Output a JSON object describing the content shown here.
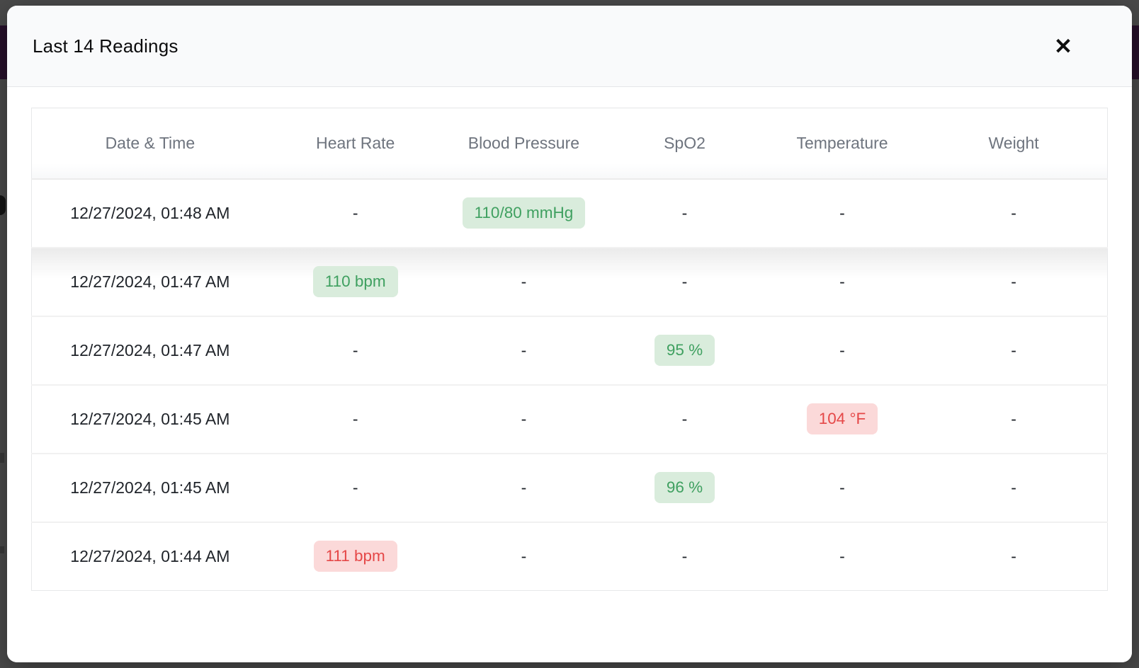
{
  "modal": {
    "title": "Last 14 Readings",
    "close_label": "✕"
  },
  "table": {
    "columns": [
      "Date & Time",
      "Heart Rate",
      "Blood Pressure",
      "SpO2",
      "Temperature",
      "Weight"
    ],
    "rows": [
      {
        "highlighted": false,
        "cells": [
          {
            "text": "12/27/2024, 01:48 AM"
          },
          {
            "text": "-"
          },
          {
            "text": "110/80 mmHg",
            "badge": "green"
          },
          {
            "text": "-"
          },
          {
            "text": "-"
          },
          {
            "text": "-"
          }
        ]
      },
      {
        "highlighted": true,
        "cells": [
          {
            "text": "12/27/2024, 01:47 AM"
          },
          {
            "text": "110 bpm",
            "badge": "green"
          },
          {
            "text": "-"
          },
          {
            "text": "-"
          },
          {
            "text": "-"
          },
          {
            "text": "-"
          }
        ]
      },
      {
        "highlighted": false,
        "cells": [
          {
            "text": "12/27/2024, 01:47 AM"
          },
          {
            "text": "-"
          },
          {
            "text": "-"
          },
          {
            "text": "95 %",
            "badge": "green"
          },
          {
            "text": "-"
          },
          {
            "text": "-"
          }
        ]
      },
      {
        "highlighted": false,
        "cells": [
          {
            "text": "12/27/2024, 01:45 AM"
          },
          {
            "text": "-"
          },
          {
            "text": "-"
          },
          {
            "text": "-"
          },
          {
            "text": "104 °F",
            "badge": "red"
          },
          {
            "text": "-"
          }
        ]
      },
      {
        "highlighted": false,
        "cells": [
          {
            "text": "12/27/2024, 01:45 AM"
          },
          {
            "text": "-"
          },
          {
            "text": "-"
          },
          {
            "text": "96 %",
            "badge": "green"
          },
          {
            "text": "-"
          },
          {
            "text": "-"
          }
        ]
      },
      {
        "highlighted": false,
        "cells": [
          {
            "text": "12/27/2024, 01:44 AM"
          },
          {
            "text": "111 bpm",
            "badge": "red"
          },
          {
            "text": "-"
          },
          {
            "text": "-"
          },
          {
            "text": "-"
          },
          {
            "text": "-"
          }
        ]
      }
    ]
  },
  "colors": {
    "green_bg": "#d9ecdc",
    "green_text": "#3fa060",
    "red_bg": "#fbd9d9",
    "red_text": "#e54848",
    "header_bg": "#f9fafb",
    "backdrop": "#4a4a4a",
    "backdrop_band": "#27102a"
  }
}
